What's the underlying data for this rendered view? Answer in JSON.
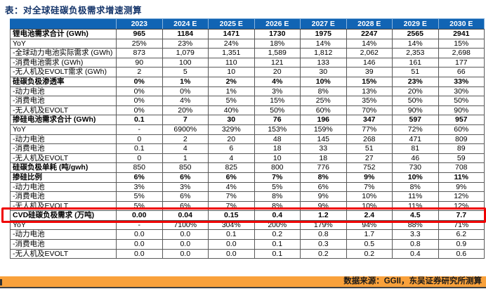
{
  "title": "表：对全球硅碳负极需求增速测算",
  "source": {
    "label": "数据来源：GGII，东吴证券研究所测算"
  },
  "colors": {
    "header_blue": "#1164B4",
    "footer_orange": "#F9A13B",
    "highlight_red": "#EF0000",
    "title_navy": "#16366B"
  },
  "chart_data": {
    "type": "table",
    "columns": [
      "2023",
      "2024 E",
      "2025 E",
      "2026 E",
      "2027 E",
      "2028 E",
      "2029 E",
      "2030 E"
    ],
    "rows": [
      {
        "label": "锂电池需求合计 (GWh)",
        "style": "section",
        "values": [
          "965",
          "1184",
          "1471",
          "1730",
          "1975",
          "2247",
          "2565",
          "2941"
        ]
      },
      {
        "label": "YoY",
        "style": "plain",
        "values": [
          "25%",
          "23%",
          "24%",
          "18%",
          "14%",
          "14%",
          "14%",
          "15%"
        ]
      },
      {
        "label": "-全球动力电池实际需求 (GWh)",
        "style": "sub",
        "values": [
          "873",
          "1,079",
          "1,351",
          "1,589",
          "1,812",
          "2,062",
          "2,353",
          "2,698"
        ]
      },
      {
        "label": "-消费电池需求 (GWh)",
        "style": "sub",
        "values": [
          "90",
          "100",
          "110",
          "121",
          "133",
          "146",
          "161",
          "177"
        ]
      },
      {
        "label": "-无人机及EVOLT需求 (GWh)",
        "style": "sub",
        "values": [
          "2",
          "5",
          "10",
          "20",
          "30",
          "39",
          "51",
          "66"
        ]
      },
      {
        "label": "硅碳负极渗透率",
        "style": "section",
        "values": [
          "0%",
          "1%",
          "2%",
          "4%",
          "10%",
          "15%",
          "23%",
          "33%"
        ]
      },
      {
        "label": "-动力电池",
        "style": "sub",
        "values": [
          "0%",
          "0%",
          "1%",
          "3%",
          "8%",
          "13%",
          "20%",
          "30%"
        ]
      },
      {
        "label": "-消费电池",
        "style": "sub",
        "values": [
          "0%",
          "4%",
          "5%",
          "15%",
          "25%",
          "35%",
          "50%",
          "50%"
        ]
      },
      {
        "label": "-无人机及EVOLT",
        "style": "sub",
        "values": [
          "0%",
          "20%",
          "40%",
          "50%",
          "60%",
          "70%",
          "90%",
          "90%"
        ]
      },
      {
        "label": "掺硅电池需求合计 (GWh)",
        "style": "section",
        "values": [
          "0.1",
          "7",
          "30",
          "76",
          "196",
          "347",
          "597",
          "957"
        ]
      },
      {
        "label": "YoY",
        "style": "plain",
        "values": [
          "-",
          "6900%",
          "329%",
          "153%",
          "159%",
          "77%",
          "72%",
          "60%"
        ]
      },
      {
        "label": "-动力电池",
        "style": "sub",
        "values": [
          "0",
          "2",
          "20",
          "48",
          "145",
          "268",
          "471",
          "809"
        ]
      },
      {
        "label": "-消费电池",
        "style": "sub",
        "values": [
          "0.1",
          "4",
          "6",
          "18",
          "33",
          "51",
          "81",
          "89"
        ]
      },
      {
        "label": "-无人机及EVOLT",
        "style": "sub",
        "values": [
          "0",
          "1",
          "4",
          "10",
          "18",
          "27",
          "46",
          "59"
        ]
      },
      {
        "label": "硅碳负极单耗 (吨/gwh)",
        "style": "unit",
        "values": [
          "850",
          "850",
          "825",
          "800",
          "776",
          "752",
          "730",
          "708"
        ]
      },
      {
        "label": "掺硅比例",
        "style": "section",
        "values": [
          "6%",
          "6%",
          "6%",
          "7%",
          "8%",
          "9%",
          "10%",
          "11%"
        ]
      },
      {
        "label": "-动力电池",
        "style": "sub",
        "values": [
          "3%",
          "3%",
          "4%",
          "5%",
          "6%",
          "7%",
          "8%",
          "9%"
        ]
      },
      {
        "label": "-消费电池",
        "style": "sub",
        "values": [
          "5%",
          "6%",
          "7%",
          "8%",
          "9%",
          "10%",
          "11%",
          "12%"
        ]
      },
      {
        "label": "-无人机及EVOLT",
        "style": "sub",
        "values": [
          "5%",
          "6%",
          "7%",
          "8%",
          "9%",
          "10%",
          "11%",
          "12%"
        ]
      },
      {
        "label": "CVD硅碳负极需求 (万吨)",
        "style": "section highlight",
        "values": [
          "0.00",
          "0.04",
          "0.15",
          "0.4",
          "1.2",
          "2.4",
          "4.5",
          "7.7"
        ]
      },
      {
        "label": "YoY",
        "style": "plain",
        "values": [
          "-",
          "7100%",
          "304%",
          "200%",
          "179%",
          "94%",
          "88%",
          "71%"
        ]
      },
      {
        "label": "-动力电池",
        "style": "sub",
        "values": [
          "0.0",
          "0.0",
          "0.1",
          "0.2",
          "0.8",
          "1.7",
          "3.3",
          "6.2"
        ]
      },
      {
        "label": "-消费电池",
        "style": "sub",
        "values": [
          "0.0",
          "0.0",
          "0.0",
          "0.1",
          "0.3",
          "0.5",
          "0.8",
          "0.9"
        ]
      },
      {
        "label": "-无人机及EVOLT",
        "style": "sub",
        "values": [
          "0.0",
          "0.0",
          "0.0",
          "0.1",
          "0.2",
          "0.2",
          "0.4",
          "0.6"
        ]
      }
    ]
  }
}
